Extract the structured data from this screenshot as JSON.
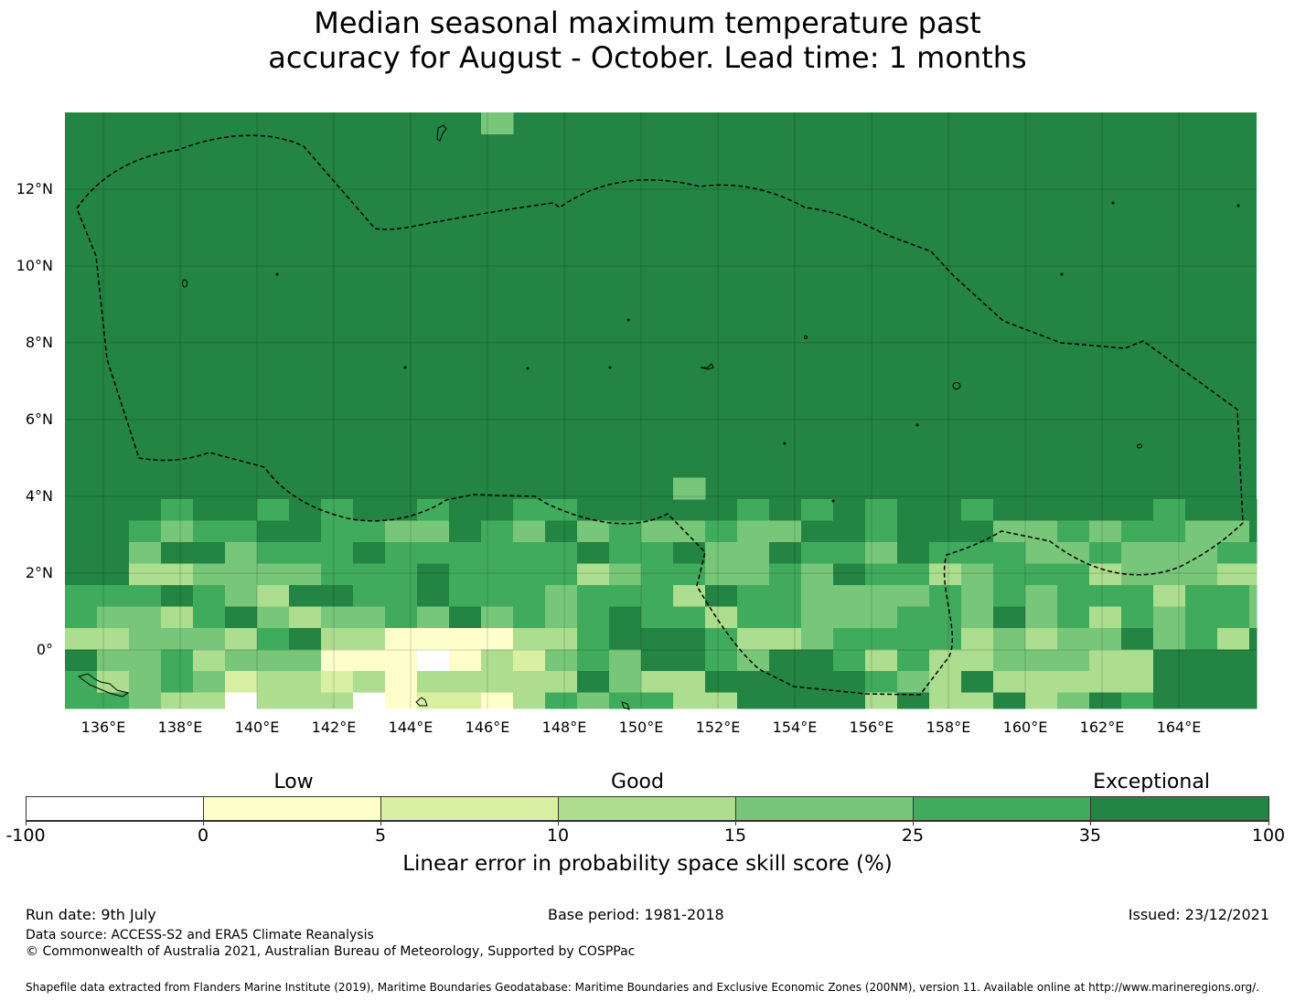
{
  "title": {
    "line1": "Median seasonal maximum temperature past",
    "line2": "accuracy for August - October. Lead time: 1 months"
  },
  "map": {
    "lat_labels": [
      "12°N",
      "10°N",
      "8°N",
      "6°N",
      "4°N",
      "2°N",
      "0°"
    ],
    "lon_labels": [
      "136°E",
      "138°E",
      "140°E",
      "142°E",
      "144°E",
      "146°E",
      "148°E",
      "150°E",
      "152°E",
      "154°E",
      "156°E",
      "158°E",
      "160°E",
      "162°E",
      "164°E"
    ],
    "region": {
      "lon_min": 134.9,
      "lon_max": 165.9,
      "lat_min": -1.5,
      "lat_max": 14
    },
    "eez_boundary": "dashed-black-line",
    "grid": true
  },
  "legend": {
    "categories": [
      "Low",
      "Good",
      "Exceptional"
    ],
    "ticks": [
      "-100",
      "0",
      "5",
      "10",
      "15",
      "25",
      "35",
      "100"
    ],
    "colors": [
      "#ffffff",
      "#ffffcc",
      "#d9f0a3",
      "#addd8e",
      "#78c679",
      "#41ab5d",
      "#238443"
    ],
    "title": "Linear error in probability space skill score (%)"
  },
  "footer": {
    "run_date": "Run date: 9th July",
    "base_period": "Base period: 1981-2018",
    "issued": "Issued: 23/12/2021",
    "data_source": "Data source: ACCESS-S2 and ERA5 Climate Reanalysis",
    "copyright": "© Commonwealth of Australia 2021, Australian Bureau of Meteorology, Supported by COSPPac",
    "shapefile": "Shapefile data extracted from Flanders Marine Institute (2019), Maritime Boundaries Geodatabase: Maritime Boundaries and Exclusive Economic Zones (200NM), version 11. Available online at http://www.marineregions.org/."
  }
}
